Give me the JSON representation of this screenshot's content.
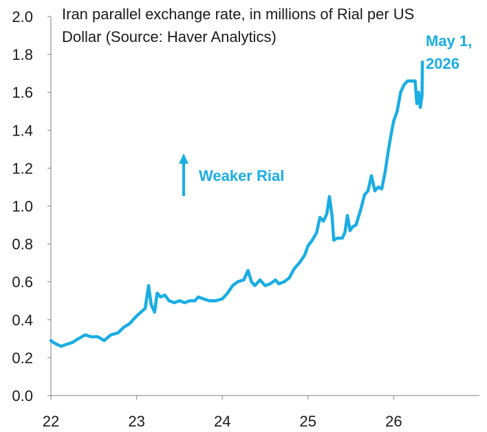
{
  "chart_data": {
    "type": "line",
    "title_lines": [
      "Iran parallel exchange rate, in millions of Rial per US",
      "Dollar (Source: Haver Analytics)"
    ],
    "xlabel": "",
    "ylabel": "",
    "xlim": [
      2022.0,
      2027.0
    ],
    "ylim": [
      0.0,
      2.0
    ],
    "x_ticks": [
      2022,
      2023,
      2024,
      2025,
      2026
    ],
    "x_tick_labels": [
      "22",
      "23",
      "24",
      "25",
      "26"
    ],
    "y_ticks": [
      0.0,
      0.2,
      0.4,
      0.6,
      0.8,
      1.0,
      1.2,
      1.4,
      1.6,
      1.8,
      2.0
    ],
    "y_tick_labels": [
      "0.0",
      "0.2",
      "0.4",
      "0.6",
      "0.8",
      "1.0",
      "1.2",
      "1.4",
      "1.6",
      "1.8",
      "2.0"
    ],
    "grid": false,
    "line_color": "#1AADE4",
    "series": [
      {
        "name": "",
        "points": [
          [
            2022.0,
            0.29
          ],
          [
            2022.03,
            0.28
          ],
          [
            2022.07,
            0.27
          ],
          [
            2022.12,
            0.26
          ],
          [
            2022.18,
            0.27
          ],
          [
            2022.25,
            0.28
          ],
          [
            2022.32,
            0.3
          ],
          [
            2022.4,
            0.32
          ],
          [
            2022.47,
            0.31
          ],
          [
            2022.55,
            0.31
          ],
          [
            2022.62,
            0.29
          ],
          [
            2022.7,
            0.32
          ],
          [
            2022.78,
            0.33
          ],
          [
            2022.85,
            0.36
          ],
          [
            2022.92,
            0.38
          ],
          [
            2023.0,
            0.42
          ],
          [
            2023.05,
            0.44
          ],
          [
            2023.1,
            0.46
          ],
          [
            2023.14,
            0.58
          ],
          [
            2023.17,
            0.48
          ],
          [
            2023.21,
            0.44
          ],
          [
            2023.24,
            0.54
          ],
          [
            2023.28,
            0.52
          ],
          [
            2023.33,
            0.53
          ],
          [
            2023.38,
            0.5
          ],
          [
            2023.44,
            0.49
          ],
          [
            2023.5,
            0.5
          ],
          [
            2023.56,
            0.49
          ],
          [
            2023.62,
            0.5
          ],
          [
            2023.68,
            0.5
          ],
          [
            2023.72,
            0.52
          ],
          [
            2023.78,
            0.51
          ],
          [
            2023.85,
            0.5
          ],
          [
            2023.92,
            0.5
          ],
          [
            2024.0,
            0.51
          ],
          [
            2024.06,
            0.54
          ],
          [
            2024.12,
            0.58
          ],
          [
            2024.18,
            0.6
          ],
          [
            2024.25,
            0.61
          ],
          [
            2024.3,
            0.66
          ],
          [
            2024.34,
            0.6
          ],
          [
            2024.38,
            0.58
          ],
          [
            2024.44,
            0.61
          ],
          [
            2024.5,
            0.58
          ],
          [
            2024.56,
            0.59
          ],
          [
            2024.62,
            0.61
          ],
          [
            2024.66,
            0.59
          ],
          [
            2024.72,
            0.6
          ],
          [
            2024.78,
            0.62
          ],
          [
            2024.84,
            0.67
          ],
          [
            2024.9,
            0.7
          ],
          [
            2024.96,
            0.74
          ],
          [
            2025.0,
            0.79
          ],
          [
            2025.05,
            0.82
          ],
          [
            2025.1,
            0.86
          ],
          [
            2025.14,
            0.94
          ],
          [
            2025.18,
            0.92
          ],
          [
            2025.22,
            0.96
          ],
          [
            2025.25,
            1.05
          ],
          [
            2025.28,
            0.95
          ],
          [
            2025.3,
            0.82
          ],
          [
            2025.34,
            0.83
          ],
          [
            2025.4,
            0.83
          ],
          [
            2025.43,
            0.86
          ],
          [
            2025.46,
            0.95
          ],
          [
            2025.49,
            0.87
          ],
          [
            2025.52,
            0.89
          ],
          [
            2025.56,
            0.9
          ],
          [
            2025.62,
            0.99
          ],
          [
            2025.66,
            1.06
          ],
          [
            2025.7,
            1.08
          ],
          [
            2025.74,
            1.16
          ],
          [
            2025.78,
            1.08
          ],
          [
            2025.82,
            1.1
          ],
          [
            2025.86,
            1.09
          ],
          [
            2025.9,
            1.18
          ],
          [
            2025.94,
            1.3
          ],
          [
            2025.97,
            1.38
          ],
          [
            2026.0,
            1.45
          ],
          [
            2026.04,
            1.5
          ],
          [
            2026.08,
            1.6
          ],
          [
            2026.12,
            1.64
          ],
          [
            2026.16,
            1.66
          ],
          [
            2026.2,
            1.66
          ],
          [
            2026.25,
            1.66
          ],
          [
            2026.27,
            1.54
          ],
          [
            2026.29,
            1.6
          ],
          [
            2026.31,
            1.52
          ],
          [
            2026.33,
            1.58
          ],
          [
            2026.335,
            1.76
          ]
        ]
      }
    ],
    "annotations": {
      "weaker_rial": "Weaker Rial",
      "end_label_lines": [
        "May 1,",
        "2026"
      ]
    }
  }
}
